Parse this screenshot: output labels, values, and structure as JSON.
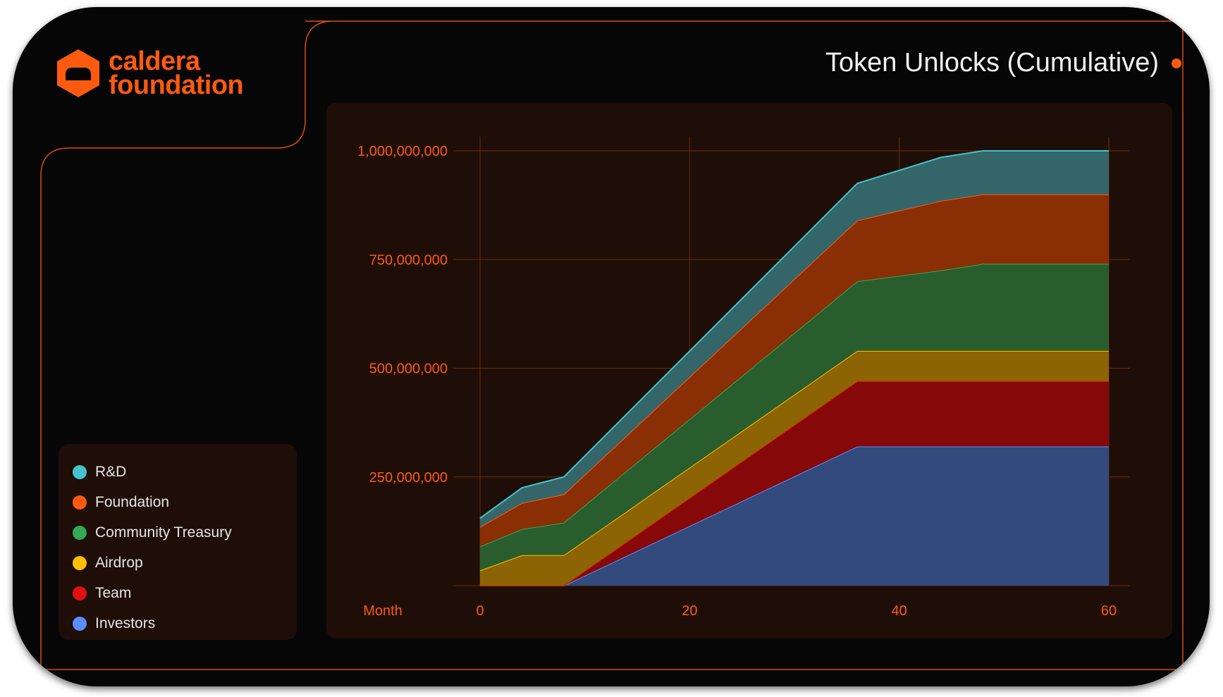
{
  "brand": {
    "line1": "caldera",
    "line2": "foundation",
    "color": "#ff5a0f"
  },
  "title": "Token Unlocks (Cumulative)",
  "accent": "#ff5a0f",
  "chart_data": {
    "type": "area",
    "title": "Token Unlocks (Cumulative)",
    "xlabel": "Month",
    "ylabel": "",
    "stacked": true,
    "xlim": [
      0,
      60
    ],
    "ylim": [
      0,
      1000000000
    ],
    "xticks": [
      "0",
      "20",
      "40",
      "60"
    ],
    "yticks": [
      "1,000,000,000",
      "750,000,000",
      "500,000,000",
      "250,000,000"
    ],
    "grid": true,
    "legend_position": "left",
    "x": [
      0,
      4,
      8,
      36,
      44,
      48,
      60
    ],
    "series": [
      {
        "name": "Investors",
        "color": "#5b8cff",
        "values": [
          0,
          0,
          0,
          320000000,
          320000000,
          320000000,
          320000000
        ]
      },
      {
        "name": "Team",
        "color": "#e01010",
        "values": [
          0,
          0,
          0,
          150000000,
          150000000,
          150000000,
          150000000
        ]
      },
      {
        "name": "Airdrop",
        "color": "#ffc000",
        "values": [
          35000000,
          70000000,
          70000000,
          70000000,
          70000000,
          70000000,
          70000000
        ]
      },
      {
        "name": "Community Treasury",
        "color": "#34a853",
        "values": [
          55000000,
          60000000,
          75000000,
          160000000,
          185000000,
          200000000,
          200000000
        ]
      },
      {
        "name": "Foundation",
        "color": "#ff5a0f",
        "values": [
          45000000,
          60000000,
          65000000,
          140000000,
          160000000,
          160000000,
          160000000
        ]
      },
      {
        "name": "R&D",
        "color": "#45c2cc",
        "values": [
          20000000,
          35000000,
          40000000,
          85000000,
          100000000,
          100000000,
          100000000
        ]
      }
    ]
  },
  "legend": [
    {
      "label": "R&D",
      "color": "#45c2cc"
    },
    {
      "label": "Foundation",
      "color": "#ff5a0f"
    },
    {
      "label": "Community Treasury",
      "color": "#34a853"
    },
    {
      "label": "Airdrop",
      "color": "#ffc000"
    },
    {
      "label": "Team",
      "color": "#e01010"
    },
    {
      "label": "Investors",
      "color": "#5b8cff"
    }
  ]
}
